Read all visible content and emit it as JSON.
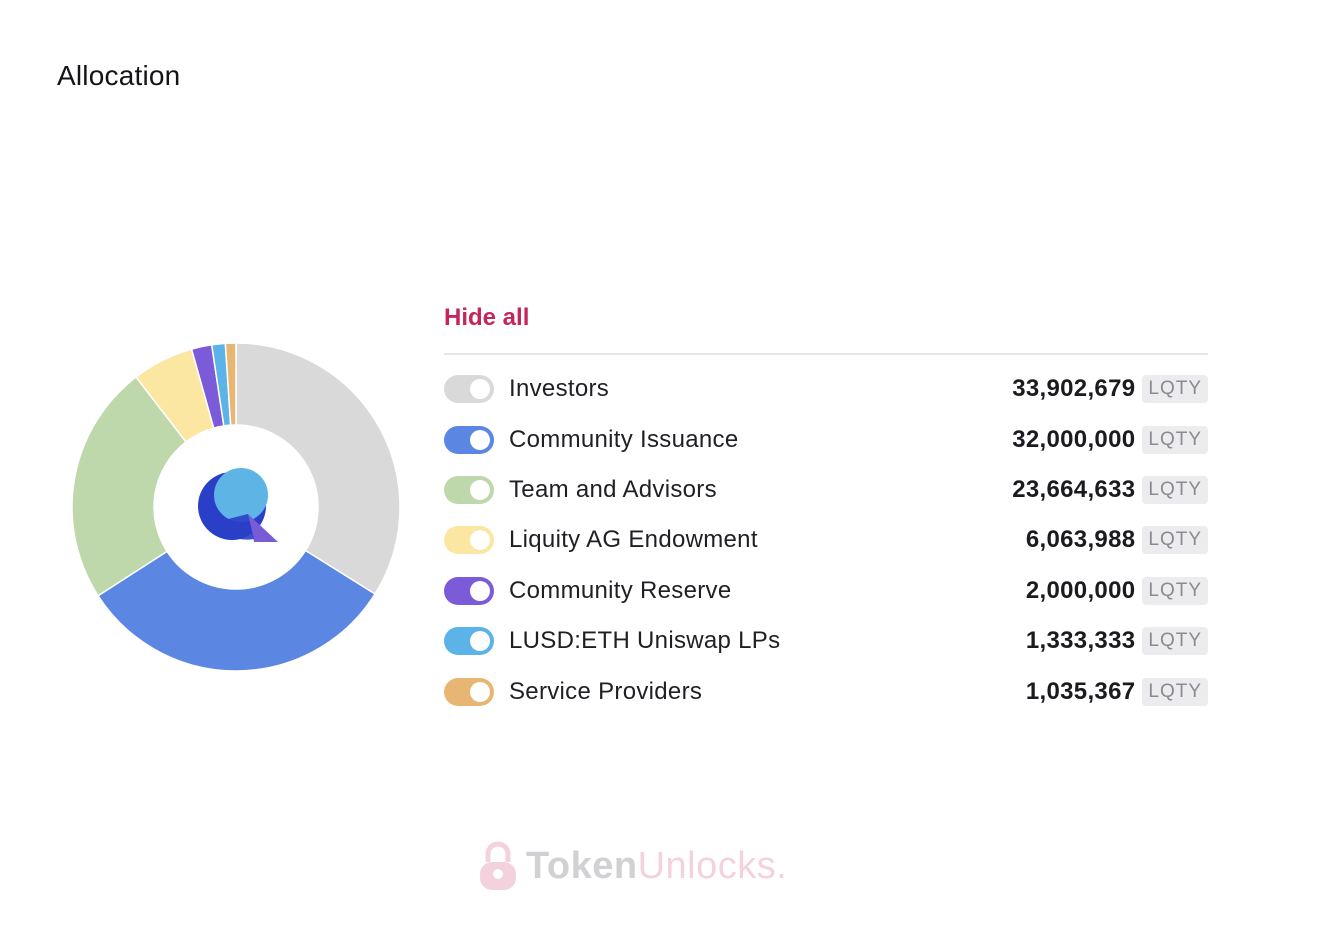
{
  "title": "Allocation",
  "hide_all_label": "Hide all",
  "unit": "LQTY",
  "watermark": {
    "part1": "Token",
    "part2": "Unlocks",
    "dot": "."
  },
  "colors": {
    "accent": "#c4265a"
  },
  "chart_data": {
    "type": "pie",
    "donut": true,
    "categories": [
      "Investors",
      "Community Issuance",
      "Team and Advisors",
      "Liquity AG Endowment",
      "Community Reserve",
      "LUSD:ETH Uniswap LPs",
      "Service Providers"
    ],
    "values": [
      33902679,
      32000000,
      23664633,
      6063988,
      2000000,
      1333333,
      1035367
    ],
    "values_display": [
      "33,902,679",
      "32,000,000",
      "23,664,633",
      "6,063,988",
      "2,000,000",
      "1,333,333",
      "1,035,367"
    ],
    "colors": [
      "#d9d9d9",
      "#5b86e2",
      "#bed8ab",
      "#fbe6a2",
      "#7b5bd7",
      "#5bb3e7",
      "#e8b673"
    ],
    "enabled": [
      true,
      true,
      true,
      true,
      true,
      true,
      true
    ]
  }
}
